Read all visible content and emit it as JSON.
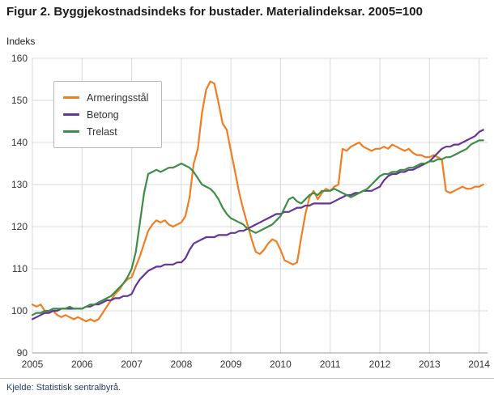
{
  "page": {
    "title": "Figur 2. Byggjekostnadsindeks for bustader. Materialindeksar. 2005=100",
    "y_axis_title": "Indeks",
    "source": "Kjelde: Statistisk sentralbyrå."
  },
  "chart_data": {
    "type": "line",
    "title": "Figur 2. Byggjekostnadsindeks for bustader. Materialindeksar. 2005=100",
    "xlabel": "",
    "ylabel": "Indeks",
    "ylim": [
      90,
      160
    ],
    "y_ticks": [
      90,
      100,
      110,
      120,
      130,
      140,
      150,
      160
    ],
    "xlim": [
      2005,
      2014.17
    ],
    "x_ticks": [
      2005,
      2006,
      2007,
      2008,
      2009,
      2010,
      2011,
      2012,
      2013,
      2014
    ],
    "x_start_year": 2005,
    "x_step_months": 1,
    "grid": true,
    "legend_position": "top-left",
    "series": [
      {
        "name": "Armeringsstål",
        "color": "#f07d20",
        "values": [
          101.5,
          101,
          101.5,
          100,
          99.5,
          100,
          99,
          98.5,
          99,
          98.5,
          98,
          98.5,
          98,
          97.5,
          98,
          97.5,
          98,
          99.5,
          101,
          102.5,
          104,
          105,
          106.5,
          107.5,
          108,
          110.5,
          113,
          116,
          119,
          120.5,
          121.5,
          121,
          121.5,
          120.5,
          120,
          120.5,
          121,
          122.5,
          127,
          135,
          138.5,
          147,
          152.5,
          154.5,
          154,
          149.5,
          144.5,
          143,
          138,
          133,
          128,
          124,
          120.5,
          117,
          114,
          113.5,
          114.5,
          116,
          117,
          116.5,
          114.5,
          112,
          111.5,
          111,
          111.5,
          117.5,
          123,
          127,
          128.5,
          126.5,
          128,
          129,
          128.5,
          129.5,
          130,
          138.5,
          138,
          139,
          139.5,
          140,
          139,
          138.5,
          138,
          138.5,
          138.5,
          139,
          138.5,
          139.5,
          139,
          138.5,
          138,
          138.5,
          137.5,
          137,
          137,
          136.5,
          136.5,
          137,
          136.5,
          136,
          128.5,
          128,
          128.5,
          129,
          129.5,
          129,
          129,
          129.5,
          129.5,
          130
        ]
      },
      {
        "name": "Betong",
        "color": "#663399",
        "values": [
          98,
          98.5,
          99,
          99.5,
          99.5,
          100,
          100,
          100.5,
          100.5,
          100.5,
          100.5,
          100.5,
          100.5,
          101,
          101,
          101.5,
          101.5,
          102,
          102.5,
          102.5,
          103,
          103,
          103.5,
          103.5,
          104,
          106,
          107.5,
          108.5,
          109.5,
          110,
          110.5,
          110.5,
          111,
          111,
          111,
          111.5,
          111.5,
          112.5,
          114.5,
          116,
          116.5,
          117,
          117.5,
          117.5,
          117.5,
          118,
          118,
          118,
          118.5,
          118.5,
          119,
          119,
          119.5,
          120,
          120.5,
          121,
          121.5,
          122,
          122.5,
          123,
          123,
          123.5,
          123.5,
          124,
          124.5,
          124.5,
          125,
          125,
          125.5,
          125.5,
          125.5,
          125.5,
          125.5,
          126,
          126.5,
          127,
          127.5,
          127.5,
          128,
          128,
          128.5,
          128.5,
          128.5,
          129,
          129.5,
          131,
          132,
          132.5,
          132.5,
          133,
          133,
          133.5,
          133.5,
          134,
          134.5,
          135,
          135.5,
          136.5,
          137.5,
          138.5,
          139,
          139,
          139.5,
          139.5,
          140,
          140.5,
          141,
          141.5,
          142.5,
          143
        ]
      },
      {
        "name": "Trelast",
        "color": "#3c8d46",
        "values": [
          99,
          99.5,
          99.5,
          100,
          100,
          100.5,
          100.5,
          100.5,
          100.5,
          101,
          100.5,
          100.5,
          100.5,
          101,
          101.5,
          101.5,
          102,
          102.5,
          103,
          103.5,
          104.5,
          105.5,
          106.5,
          108,
          110,
          114,
          121,
          128,
          132.5,
          133,
          133.5,
          133,
          133.5,
          134,
          134,
          134.5,
          135,
          134.5,
          134,
          133,
          131.5,
          130,
          129.5,
          129,
          128,
          126.5,
          124.5,
          123,
          122,
          121.5,
          121,
          120.5,
          119.5,
          119,
          118.5,
          119,
          119.5,
          120,
          120.5,
          121.5,
          122.5,
          124.5,
          126.5,
          127,
          126,
          125.5,
          126.5,
          127.5,
          128,
          127.5,
          128.5,
          128.5,
          128.5,
          129,
          128.5,
          128,
          127.5,
          127,
          127.5,
          128,
          128.5,
          129,
          130,
          131,
          132,
          132.5,
          132.5,
          133,
          133,
          133.5,
          133.5,
          134,
          134,
          134.5,
          135,
          135,
          135.5,
          135.5,
          136,
          136,
          136.5,
          136.5,
          137,
          137.5,
          138,
          138.5,
          139.5,
          140,
          140.5,
          140.5
        ]
      }
    ]
  }
}
